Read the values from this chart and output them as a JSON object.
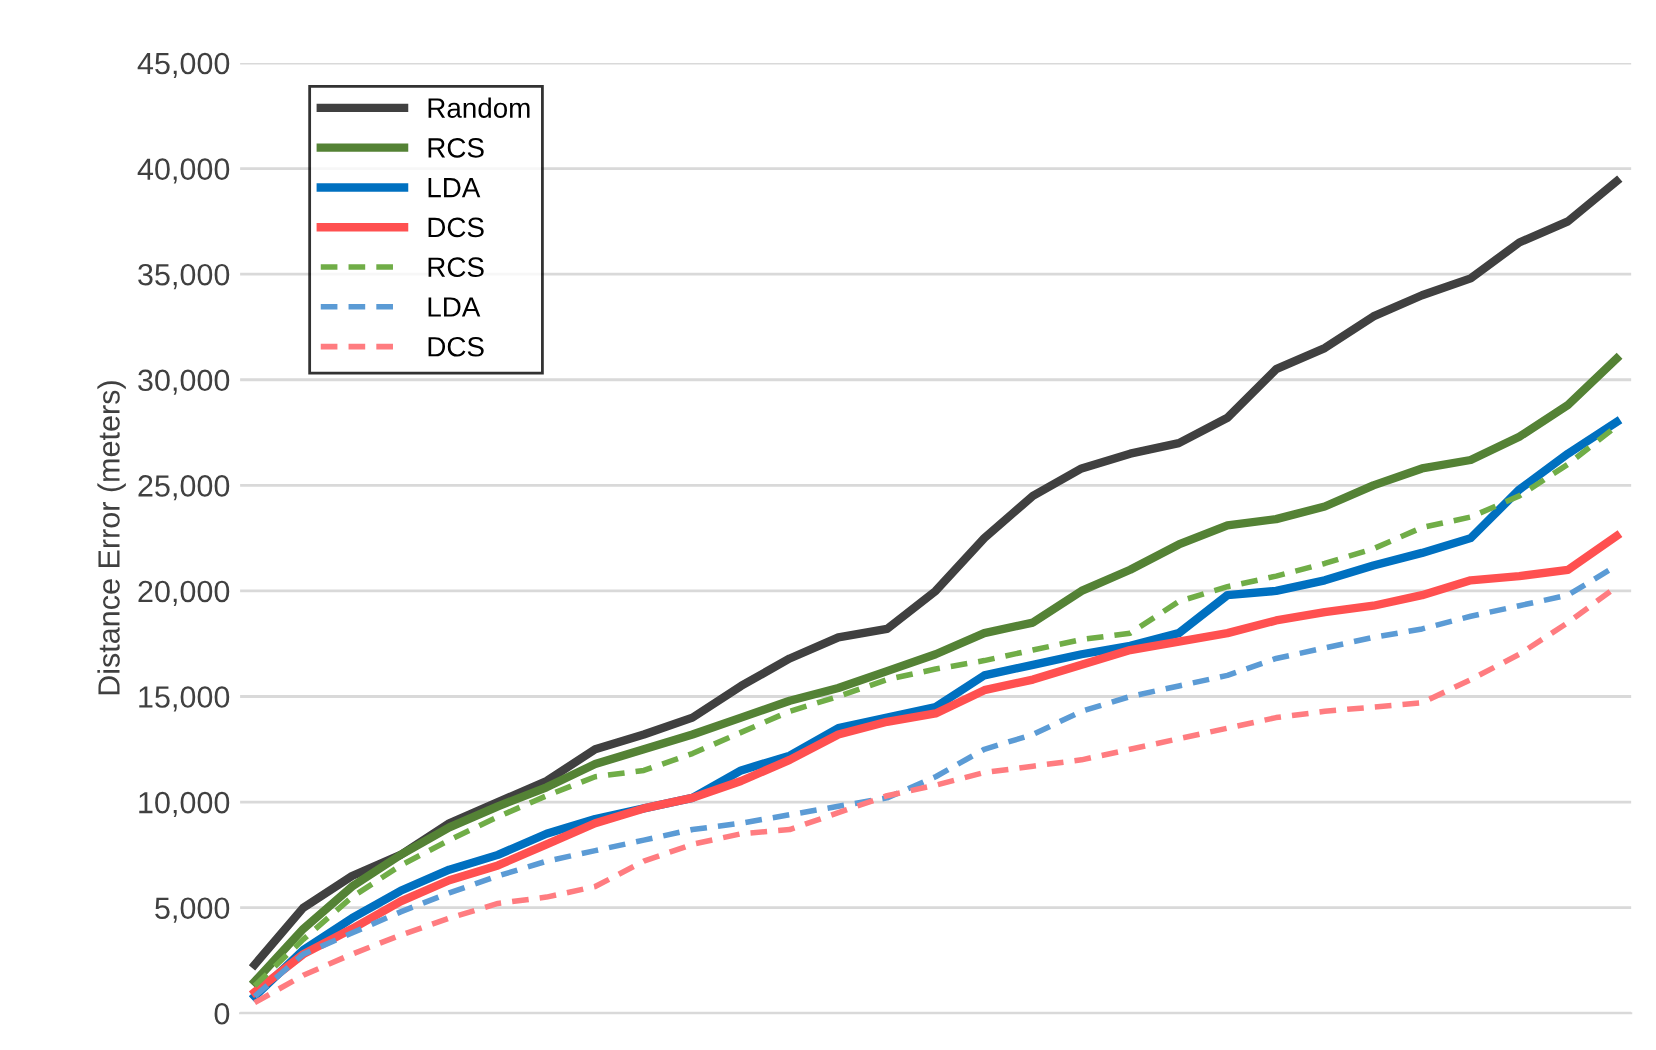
{
  "chart_data": {
    "type": "line",
    "ylabel": "Distance Error (meters)",
    "categories": [
      null,
      null,
      null,
      null,
      null,
      null,
      null,
      null,
      null,
      null,
      null,
      null,
      null,
      null,
      null,
      null,
      null,
      null,
      null,
      null,
      null,
      null,
      null,
      null,
      null,
      null,
      null,
      null,
      null
    ],
    "ylim": [
      0,
      45000
    ],
    "yticks": [
      {
        "value": 0,
        "label": "0"
      },
      {
        "value": 5000,
        "label": "5,000"
      },
      {
        "value": 10000,
        "label": "10,000"
      },
      {
        "value": 15000,
        "label": "15,000"
      },
      {
        "value": 20000,
        "label": "20,000"
      },
      {
        "value": 25000,
        "label": "25,000"
      },
      {
        "value": 30000,
        "label": "30,000"
      },
      {
        "value": 35000,
        "label": "35,000"
      },
      {
        "value": 40000,
        "label": "40,000"
      },
      {
        "value": 45000,
        "label": "45,000"
      }
    ],
    "grid": "y",
    "legend": "top left",
    "marker": "none",
    "series": [
      {
        "name": "Random",
        "color": "#404040",
        "line_style": "solid",
        "values": [
          2300,
          5000,
          6500,
          7500,
          9000,
          10000,
          11000,
          12500,
          13200,
          14000,
          15500,
          16800,
          17800,
          18200,
          20000,
          22500,
          24500,
          25800,
          26500,
          27000,
          28200,
          30500,
          31500,
          33000,
          34000,
          34800,
          36500,
          37500,
          39400
        ]
      },
      {
        "name": "RCS",
        "color": "#548235",
        "line_style": "solid",
        "values": [
          1500,
          4000,
          6000,
          7500,
          8800,
          9800,
          10700,
          11800,
          12500,
          13200,
          14000,
          14800,
          15400,
          16200,
          17000,
          18000,
          18500,
          20000,
          21000,
          22200,
          23100,
          23400,
          24000,
          25000,
          25800,
          26200,
          27300,
          28800,
          31000
        ]
      },
      {
        "name": "LDA",
        "color": "#0070c0",
        "line_style": "solid",
        "values": [
          800,
          3000,
          4500,
          5800,
          6800,
          7500,
          8500,
          9200,
          9700,
          10200,
          11500,
          12200,
          13500,
          14000,
          14500,
          16000,
          16500,
          17000,
          17400,
          18000,
          19800,
          20000,
          20500,
          21200,
          21800,
          22500,
          24800,
          26500,
          28000
        ]
      },
      {
        "name": "DCS",
        "color": "#ff5050",
        "line_style": "solid",
        "values": [
          1000,
          2800,
          4000,
          5300,
          6300,
          7000,
          8000,
          9000,
          9700,
          10200,
          11000,
          12000,
          13200,
          13800,
          14200,
          15300,
          15800,
          16500,
          17200,
          17600,
          18000,
          18600,
          19000,
          19300,
          19800,
          20500,
          20700,
          21000,
          22600
        ]
      },
      {
        "name": "RCS",
        "color": "#70ad47",
        "line_style": "dashed",
        "values": [
          1300,
          3500,
          5500,
          7000,
          8200,
          9300,
          10300,
          11200,
          11500,
          12300,
          13300,
          14300,
          15000,
          15800,
          16300,
          16700,
          17200,
          17700,
          18000,
          19500,
          20200,
          20700,
          21300,
          22000,
          23000,
          23500,
          24500,
          26000,
          27800
        ]
      },
      {
        "name": "LDA",
        "color": "#5b9bd5",
        "line_style": "dashed",
        "values": [
          800,
          2800,
          3800,
          4800,
          5700,
          6500,
          7200,
          7700,
          8200,
          8700,
          9000,
          9400,
          9800,
          10200,
          11200,
          12500,
          13200,
          14300,
          15000,
          15500,
          16000,
          16800,
          17300,
          17800,
          18200,
          18800,
          19300,
          19800,
          21200
        ]
      },
      {
        "name": "DCS",
        "color": "#ff7c80",
        "line_style": "dashed",
        "values": [
          500,
          1800,
          2800,
          3700,
          4500,
          5200,
          5500,
          6000,
          7200,
          8000,
          8500,
          8700,
          9500,
          10300,
          10800,
          11400,
          11700,
          12000,
          12500,
          13000,
          13500,
          14000,
          14300,
          14500,
          14700,
          15800,
          17000,
          18500,
          20200
        ]
      }
    ]
  }
}
